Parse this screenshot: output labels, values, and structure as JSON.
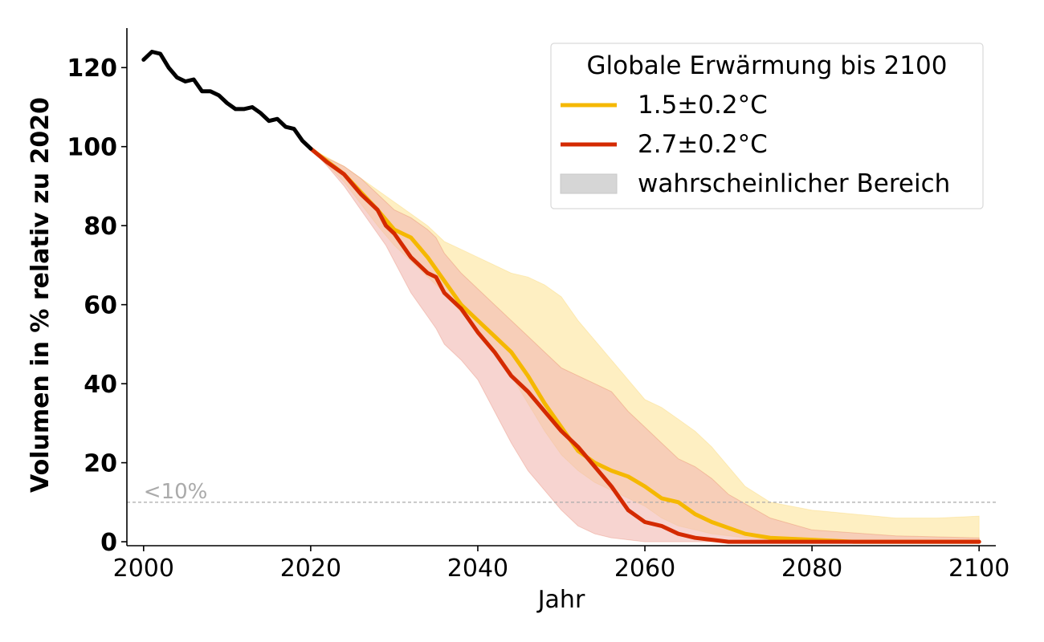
{
  "chart_data": {
    "type": "line",
    "xlabel": "Jahr",
    "ylabel": "Volumen in % relativ zu 2020",
    "xlim": [
      1998,
      2102
    ],
    "ylim": [
      -1,
      130
    ],
    "xticks": [
      2000,
      2020,
      2040,
      2060,
      2080,
      2100
    ],
    "yticks": [
      0,
      20,
      40,
      60,
      80,
      100,
      120
    ],
    "grid": false,
    "legend": {
      "title": "Globale Erwärmung bis 2100",
      "placement": "top-right",
      "entries": [
        "1.5±0.2°C",
        "2.7±0.2°C",
        "wahrscheinlicher Bereich"
      ],
      "range_color": "#d6d6d6"
    },
    "reference_line": {
      "y": 10,
      "label": "<10%",
      "color": "#aaaaaa"
    },
    "historical": {
      "color": "#000000",
      "x": [
        2000,
        2001,
        2002,
        2003,
        2004,
        2005,
        2006,
        2007,
        2008,
        2009,
        2010,
        2011,
        2012,
        2013,
        2014,
        2015,
        2016,
        2017,
        2018,
        2019,
        2020
      ],
      "y": [
        122,
        124,
        123.5,
        120,
        117.5,
        116.5,
        117,
        114,
        114,
        113,
        111,
        109.5,
        109.5,
        110,
        108.5,
        106.5,
        107,
        105,
        104.5,
        101.5,
        99.5
      ]
    },
    "series": [
      {
        "name": "1.5±0.2°C",
        "color": "#f5b800",
        "band_color": "#fde9ae",
        "x": [
          2020,
          2024,
          2028,
          2030,
          2032,
          2034,
          2036,
          2038,
          2040,
          2042,
          2044,
          2046,
          2048,
          2050,
          2052,
          2054,
          2056,
          2058,
          2060,
          2062,
          2064,
          2066,
          2068,
          2070,
          2072,
          2075,
          2080,
          2085,
          2090,
          2095,
          2100
        ],
        "y": [
          99.5,
          93,
          84,
          79,
          77,
          72,
          66,
          60,
          56,
          52,
          48,
          42,
          35,
          29,
          23,
          20,
          18,
          16.5,
          14,
          11,
          10,
          7,
          5,
          3.5,
          2,
          1,
          0.5,
          0,
          0,
          0,
          0
        ],
        "upper": [
          99.5,
          95,
          89,
          86,
          83,
          80,
          76,
          74,
          72,
          70,
          68,
          67,
          65,
          62,
          56,
          51,
          46,
          41,
          36,
          34,
          31,
          28,
          24,
          19,
          14,
          10,
          8,
          7,
          6,
          6,
          6.5
        ],
        "lower": [
          99.5,
          91,
          80,
          75,
          71,
          67,
          63,
          58,
          53,
          48,
          42,
          35,
          28,
          22,
          18,
          15,
          13,
          11,
          9,
          6,
          4,
          3,
          2,
          1.5,
          1,
          0.5,
          0,
          0,
          0,
          0,
          0
        ]
      },
      {
        "name": "2.7±0.2°C",
        "color": "#d42a00",
        "band_color": "#f2b8b0",
        "x": [
          2020,
          2022,
          2024,
          2026,
          2028,
          2029,
          2030,
          2032,
          2034,
          2035,
          2036,
          2038,
          2040,
          2042,
          2044,
          2046,
          2048,
          2050,
          2052,
          2054,
          2056,
          2058,
          2060,
          2062,
          2064,
          2066,
          2068,
          2070,
          2075,
          2080,
          2090,
          2100
        ],
        "y": [
          99.5,
          96,
          93,
          88,
          84,
          80,
          78,
          72,
          68,
          67,
          63,
          59,
          53,
          48,
          42,
          38,
          33,
          28,
          24,
          19,
          14,
          8,
          5,
          4,
          2,
          1,
          0.5,
          0,
          0,
          0,
          0,
          0
        ],
        "upper": [
          99.5,
          97,
          95,
          92,
          88,
          86,
          84,
          82,
          79,
          77,
          73,
          68,
          64,
          60,
          56,
          52,
          48,
          44,
          42,
          40,
          38,
          33,
          29,
          25,
          21,
          19,
          16,
          12,
          6,
          3,
          1.5,
          1
        ],
        "lower": [
          99.5,
          95,
          90,
          84,
          78,
          75,
          71,
          63,
          57,
          54,
          50,
          46,
          41,
          33,
          25,
          18,
          13,
          8,
          4,
          2,
          1,
          0.5,
          0,
          0,
          0,
          0,
          0,
          0,
          0,
          0,
          0,
          0
        ]
      }
    ]
  }
}
